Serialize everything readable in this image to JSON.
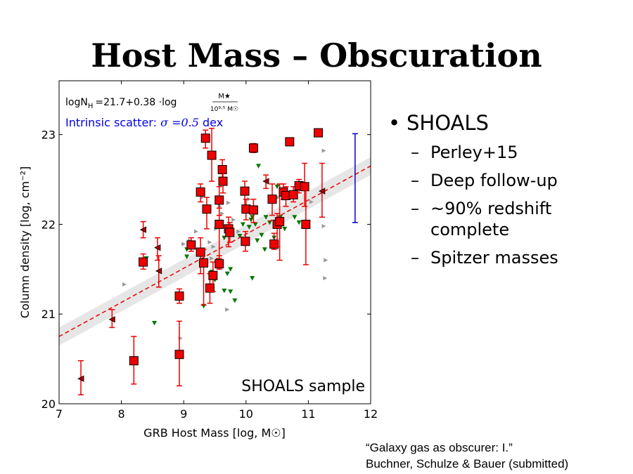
{
  "slide": {
    "title": "Host Mass – Obscuration",
    "bullets": {
      "main": "SHOALS",
      "subs": [
        "Perley+15",
        "Deep follow-up",
        "~90% redshift complete",
        "Spitzer masses"
      ]
    },
    "citation": [
      "“Galaxy gas as obscurer: I.”",
      "Buchner, Schulze & Bauer (submitted)"
    ]
  },
  "chart_data": {
    "type": "scatter",
    "xlabel": "GRB Host Mass [log, M☉]",
    "ylabel": "Column density [log, cm⁻²]",
    "xlim": [
      7,
      12
    ],
    "ylim": [
      20,
      23.6
    ],
    "xticks": [
      "7",
      "8",
      "9",
      "10",
      "11",
      "12"
    ],
    "yticks": [
      "20",
      "21",
      "22",
      "23"
    ],
    "annotations": {
      "equation": "logN_H = 21.7 + 0.38 · log(M★ / 10^9.5 M☉)",
      "equation_parts": {
        "lhs": "logN",
        "sub": "H",
        "mid": "=21.7+0.38 ·log",
        "num": "M★",
        "den": "10⁹·⁵ M☉"
      },
      "scatter": "Intrinsic scatter: σ = 0.5 dex",
      "scatter_parts": {
        "label": "Intrinsic scatter: ",
        "math": "σ =0.5",
        "unit": " dex"
      },
      "sample": "SHOALS sample"
    },
    "fit_line": {
      "intercept": 21.7,
      "slope": 0.38,
      "pivot": 9.5,
      "band_halfwidth": 0.1
    },
    "scatter_bar": {
      "x": 11.75,
      "y_low": 22.02,
      "y_high": 23.01
    },
    "colors": {
      "detections": "#ee0000",
      "fit": "#ee0000",
      "band": "#e6e6e6",
      "green_limits": "#007700",
      "gray_limits": "#999999",
      "scatter_bar": "#0000cc",
      "equation_blue": "#0000ee"
    },
    "series": [
      {
        "marker": "red-square",
        "points": [
          {
            "x": 7.35,
            "y": 20.28,
            "lo": 20.1,
            "hi": 20.48,
            "m": "tri-left"
          },
          {
            "x": 7.85,
            "y": 20.94,
            "lo": 20.85,
            "hi": 21.05,
            "m": "tri-left"
          },
          {
            "x": 8.2,
            "y": 20.48,
            "lo": 20.22,
            "hi": 20.75
          },
          {
            "x": 8.35,
            "y": 21.58,
            "lo": 21.5,
            "hi": 21.67
          },
          {
            "x": 8.35,
            "y": 21.94,
            "lo": 21.85,
            "hi": 22.03,
            "m": "tri-left"
          },
          {
            "x": 8.58,
            "y": 21.74,
            "lo": 21.6,
            "hi": 21.85,
            "m": "tri-left"
          },
          {
            "x": 8.6,
            "y": 21.48,
            "lo": 21.3,
            "hi": 21.65,
            "m": "tri-left"
          },
          {
            "x": 8.93,
            "y": 21.2,
            "lo": 21.12,
            "hi": 21.28
          },
          {
            "x": 8.93,
            "y": 20.55,
            "lo": 20.2,
            "hi": 20.92
          },
          {
            "x": 9.12,
            "y": 21.77,
            "lo": 21.7,
            "hi": 21.85
          },
          {
            "x": 9.27,
            "y": 21.69,
            "lo": 21.45,
            "hi": 21.85
          },
          {
            "x": 9.27,
            "y": 22.36,
            "lo": 22.25,
            "hi": 22.45
          },
          {
            "x": 9.32,
            "y": 21.57,
            "lo": 21.1,
            "hi": 21.72
          },
          {
            "x": 9.35,
            "y": 22.96,
            "lo": 22.85,
            "hi": 23.05
          },
          {
            "x": 9.37,
            "y": 22.17,
            "lo": 21.95,
            "hi": 22.3
          },
          {
            "x": 9.42,
            "y": 21.29,
            "lo": 21.12,
            "hi": 21.45
          },
          {
            "x": 9.45,
            "y": 22.77,
            "lo": 22.48,
            "hi": 23.07
          },
          {
            "x": 9.47,
            "y": 21.43,
            "lo": 21.25,
            "hi": 21.58
          },
          {
            "x": 9.57,
            "y": 22.27,
            "lo": 22.1,
            "hi": 22.42
          },
          {
            "x": 9.57,
            "y": 22.0,
            "lo": 21.62,
            "hi": 22.18
          },
          {
            "x": 9.57,
            "y": 21.56,
            "lo": 21.5,
            "hi": 21.65
          },
          {
            "x": 9.62,
            "y": 22.61,
            "lo": 22.5,
            "hi": 22.72
          },
          {
            "x": 9.63,
            "y": 22.48,
            "lo": 22.35,
            "hi": 22.62
          },
          {
            "x": 9.72,
            "y": 21.95,
            "lo": 21.75,
            "hi": 22.08
          },
          {
            "x": 9.74,
            "y": 21.91,
            "lo": 21.8,
            "hi": 22.02
          },
          {
            "x": 9.98,
            "y": 22.37,
            "lo": 22.2,
            "hi": 22.48
          },
          {
            "x": 9.99,
            "y": 21.81,
            "lo": 21.7,
            "hi": 21.92
          },
          {
            "x": 10.0,
            "y": 22.17,
            "lo": 22.05,
            "hi": 22.28
          },
          {
            "x": 10.12,
            "y": 22.16,
            "lo": 22.02,
            "hi": 22.28
          },
          {
            "x": 10.12,
            "y": 22.85,
            "lo": 22.8,
            "hi": 22.9
          },
          {
            "x": 10.32,
            "y": 22.48,
            "lo": 22.4,
            "hi": 22.55,
            "m": "tri-left"
          },
          {
            "x": 10.42,
            "y": 22.28,
            "lo": 22.1,
            "hi": 22.45
          },
          {
            "x": 10.45,
            "y": 21.78,
            "lo": 21.72,
            "hi": 21.9
          },
          {
            "x": 10.5,
            "y": 22.0,
            "lo": 21.75,
            "hi": 22.12
          },
          {
            "x": 10.54,
            "y": 22.03,
            "lo": 21.6,
            "hi": 22.45
          },
          {
            "x": 10.6,
            "y": 22.36,
            "lo": 22.28,
            "hi": 22.45
          },
          {
            "x": 10.64,
            "y": 22.32,
            "lo": 22.2,
            "hi": 22.42
          },
          {
            "x": 10.7,
            "y": 22.92,
            "lo": 22.88,
            "hi": 22.96
          },
          {
            "x": 10.76,
            "y": 22.33,
            "lo": 22.25,
            "hi": 22.42
          },
          {
            "x": 10.85,
            "y": 22.43,
            "lo": 22.35,
            "hi": 22.5
          },
          {
            "x": 10.94,
            "y": 22.42,
            "lo": 22.2,
            "hi": 22.68
          },
          {
            "x": 10.96,
            "y": 22.0,
            "lo": 21.55,
            "hi": 22.38
          },
          {
            "x": 11.16,
            "y": 23.02,
            "lo": 22.98,
            "hi": 23.06
          },
          {
            "x": 11.22,
            "y": 22.37,
            "lo": 22.08,
            "hi": 22.68,
            "m": "tri-left"
          }
        ]
      },
      {
        "marker": "green-tri-down",
        "points": [
          [
            8.4,
            21.62
          ],
          [
            8.53,
            20.9
          ],
          [
            9.05,
            21.64
          ],
          [
            9.05,
            21.72
          ],
          [
            9.28,
            21.55
          ],
          [
            9.35,
            21.57
          ],
          [
            9.32,
            21.09
          ],
          [
            9.45,
            21.47
          ],
          [
            9.5,
            21.38
          ],
          [
            9.55,
            21.6
          ],
          [
            9.65,
            21.26
          ],
          [
            9.65,
            21.85
          ],
          [
            9.7,
            21.45
          ],
          [
            9.75,
            21.5
          ],
          [
            9.75,
            21.25
          ],
          [
            9.82,
            21.15
          ],
          [
            9.9,
            21.87
          ],
          [
            9.95,
            22.0
          ],
          [
            10.05,
            21.97
          ],
          [
            10.08,
            22.05
          ],
          [
            10.1,
            22.08
          ],
          [
            10.1,
            21.4
          ],
          [
            10.15,
            22.0
          ],
          [
            10.18,
            21.82
          ],
          [
            10.2,
            22.65
          ],
          [
            10.25,
            21.88
          ],
          [
            10.3,
            21.72
          ],
          [
            10.32,
            22.08
          ],
          [
            10.38,
            22.02
          ],
          [
            10.45,
            21.85
          ],
          [
            10.5,
            22.42
          ],
          [
            10.55,
            22.08
          ],
          [
            10.62,
            21.95
          ],
          [
            10.78,
            22.08
          ],
          [
            10.85,
            22.02
          ]
        ]
      },
      {
        "marker": "gray-tri-right",
        "points": [
          [
            8.05,
            21.33
          ],
          [
            8.95,
            20.73
          ],
          [
            9.0,
            21.78
          ],
          [
            9.1,
            21.82
          ],
          [
            9.2,
            21.92
          ],
          [
            9.3,
            22.3
          ],
          [
            9.35,
            22.18
          ],
          [
            9.42,
            21.8
          ],
          [
            9.45,
            21.62
          ],
          [
            9.48,
            21.75
          ],
          [
            9.52,
            21.95
          ],
          [
            9.58,
            22.2
          ],
          [
            9.62,
            22.12
          ],
          [
            9.7,
            21.05
          ],
          [
            9.72,
            22.24
          ],
          [
            9.8,
            22.05
          ],
          [
            9.88,
            21.92
          ],
          [
            10.05,
            22.28
          ],
          [
            10.12,
            22.82
          ],
          [
            10.52,
            22.3
          ],
          [
            11.05,
            22.25
          ],
          [
            11.25,
            21.98
          ],
          [
            11.25,
            22.82
          ],
          [
            11.27,
            21.4
          ],
          [
            11.28,
            21.6
          ]
        ]
      }
    ]
  }
}
